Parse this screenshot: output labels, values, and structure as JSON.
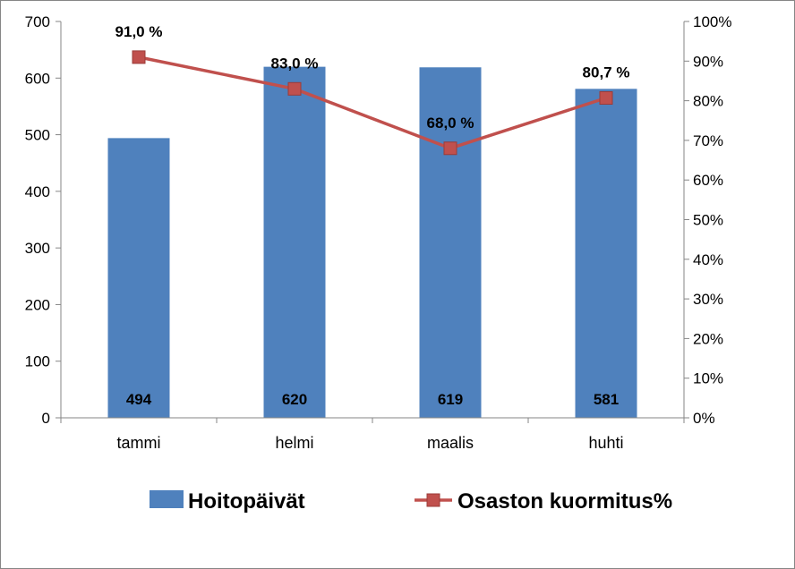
{
  "chart_data": {
    "type": "bar+line",
    "categories": [
      "tammi",
      "helmi",
      "maalis",
      "huhti"
    ],
    "series": [
      {
        "name": "Hoitopäivät",
        "type": "bar",
        "axis": "left",
        "values": [
          494,
          620,
          619,
          581
        ],
        "labels": [
          "494",
          "620",
          "619",
          "581"
        ],
        "color": "#4F81BD"
      },
      {
        "name": "Osaston kuormitus%",
        "type": "line",
        "axis": "right",
        "values": [
          91.0,
          83.0,
          68.0,
          80.7
        ],
        "labels": [
          "91,0 %",
          "83,0 %",
          "68,0 %",
          "80,7 %"
        ],
        "color": "#C0504D",
        "marker": "square"
      }
    ],
    "y_left": {
      "ylim": [
        0,
        700
      ],
      "ticks": [
        0,
        100,
        200,
        300,
        400,
        500,
        600,
        700
      ],
      "tick_labels": [
        "0",
        "100",
        "200",
        "300",
        "400",
        "500",
        "600",
        "700"
      ]
    },
    "y_right": {
      "ylim": [
        0,
        100
      ],
      "ticks": [
        0,
        10,
        20,
        30,
        40,
        50,
        60,
        70,
        80,
        90,
        100
      ],
      "tick_labels": [
        "0%",
        "10%",
        "20%",
        "30%",
        "40%",
        "50%",
        "60%",
        "70%",
        "80%",
        "90%",
        "100%"
      ]
    },
    "grid": false,
    "legend_position": "bottom",
    "axis_color": "#868686",
    "label_color": "#000000"
  }
}
